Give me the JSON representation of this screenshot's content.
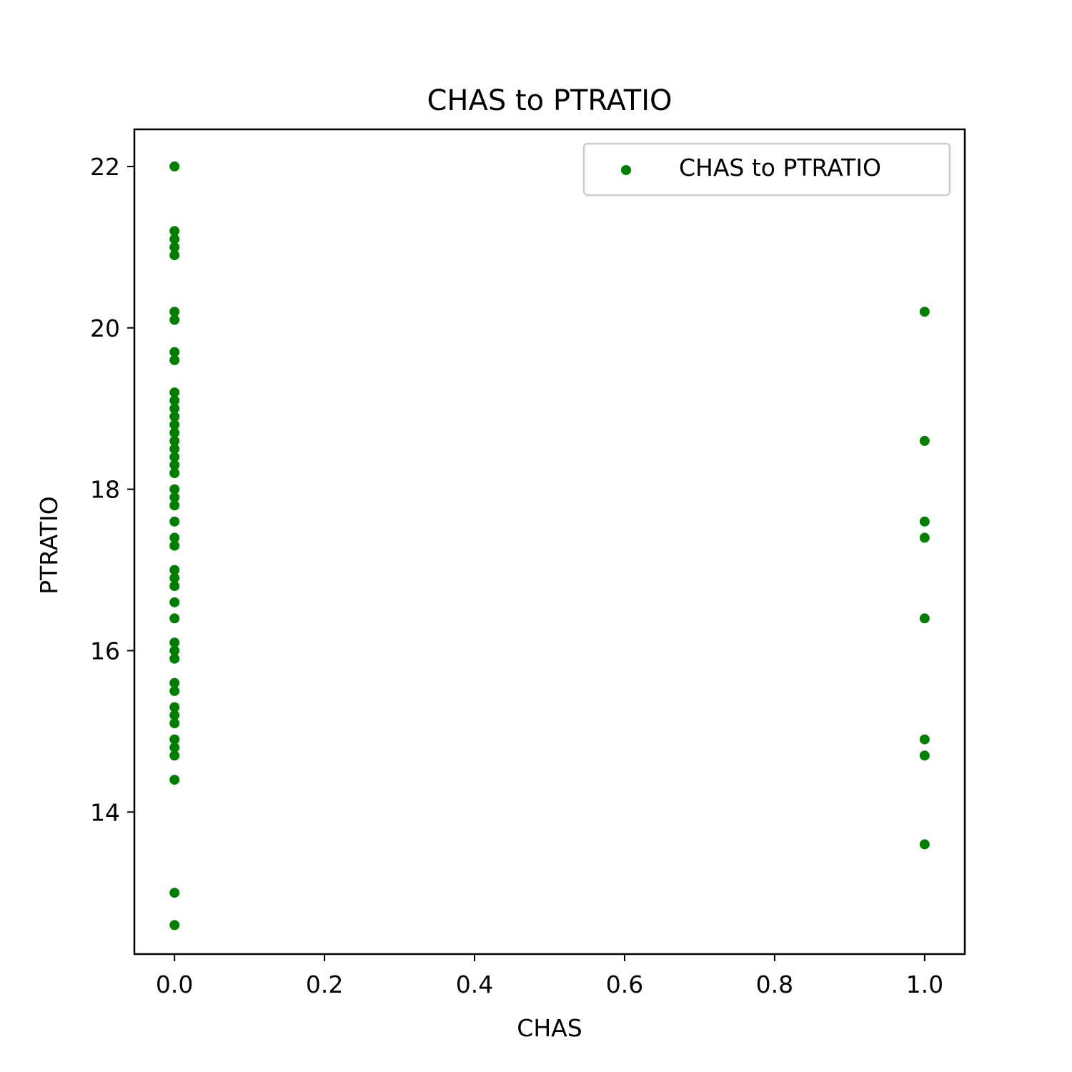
{
  "chart_data": {
    "type": "scatter",
    "title": "CHAS to PTRATIO",
    "xlabel": "CHAS",
    "ylabel": "PTRATIO",
    "xlim": [
      -0.0535,
      1.0535
    ],
    "ylim": [
      12.24,
      22.46
    ],
    "xticks": [
      0.0,
      0.2,
      0.4,
      0.6,
      0.8,
      1.0
    ],
    "xtick_labels": [
      "0.0",
      "0.2",
      "0.4",
      "0.6",
      "0.8",
      "1.0"
    ],
    "yticks": [
      14,
      16,
      18,
      20,
      22
    ],
    "ytick_labels": [
      "14",
      "16",
      "18",
      "20",
      "22"
    ],
    "grid": false,
    "legend": {
      "position": "top-right",
      "entries": [
        "CHAS to PTRATIO"
      ]
    },
    "series": [
      {
        "name": "CHAS to PTRATIO",
        "color": "#008000",
        "points": [
          [
            0,
            22.0
          ],
          [
            0,
            21.2
          ],
          [
            0,
            21.1
          ],
          [
            0,
            21.0
          ],
          [
            0,
            20.9
          ],
          [
            0,
            20.2
          ],
          [
            0,
            20.1
          ],
          [
            0,
            19.7
          ],
          [
            0,
            19.6
          ],
          [
            0,
            19.2
          ],
          [
            0,
            19.1
          ],
          [
            0,
            19.0
          ],
          [
            0,
            18.9
          ],
          [
            0,
            18.8
          ],
          [
            0,
            18.7
          ],
          [
            0,
            18.6
          ],
          [
            0,
            18.5
          ],
          [
            0,
            18.4
          ],
          [
            0,
            18.3
          ],
          [
            0,
            18.2
          ],
          [
            0,
            18.0
          ],
          [
            0,
            17.9
          ],
          [
            0,
            17.8
          ],
          [
            0,
            17.6
          ],
          [
            0,
            17.4
          ],
          [
            0,
            17.3
          ],
          [
            0,
            17.0
          ],
          [
            0,
            16.9
          ],
          [
            0,
            16.8
          ],
          [
            0,
            16.6
          ],
          [
            0,
            16.4
          ],
          [
            0,
            16.1
          ],
          [
            0,
            16.0
          ],
          [
            0,
            15.9
          ],
          [
            0,
            15.6
          ],
          [
            0,
            15.5
          ],
          [
            0,
            15.3
          ],
          [
            0,
            15.2
          ],
          [
            0,
            15.1
          ],
          [
            0,
            14.9
          ],
          [
            0,
            14.8
          ],
          [
            0,
            14.7
          ],
          [
            0,
            14.4
          ],
          [
            0,
            13.0
          ],
          [
            0,
            12.6
          ],
          [
            1,
            20.2
          ],
          [
            1,
            18.6
          ],
          [
            1,
            17.6
          ],
          [
            1,
            17.4
          ],
          [
            1,
            16.4
          ],
          [
            1,
            14.9
          ],
          [
            1,
            14.7
          ],
          [
            1,
            13.6
          ]
        ]
      }
    ]
  }
}
